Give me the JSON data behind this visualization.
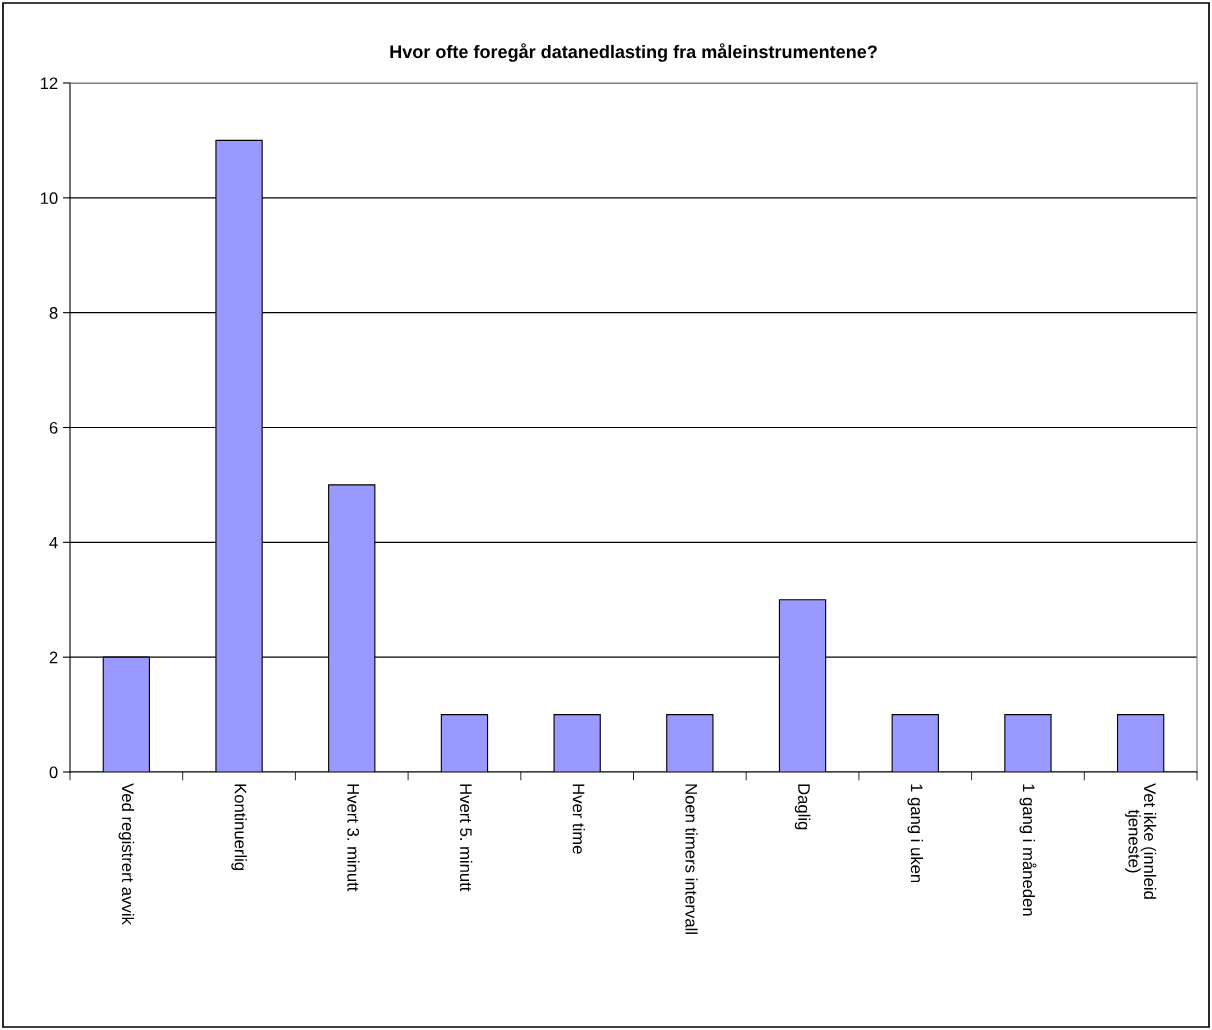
{
  "chart_data": {
    "type": "bar",
    "title": "Hvor ofte foregår datanedlasting fra måleinstrumentene?",
    "categories": [
      "Ved registrert avvik",
      "Kontinuerlig",
      "Hvert 3. minutt",
      "Hvert 5. minutt",
      "Hver time",
      "Noen timers intervall",
      "Daglig",
      "1 gang i uken",
      "1 gang i måneden",
      "Vet ikke (innleid\ntjeneste)"
    ],
    "values": [
      2,
      11,
      5,
      1,
      1,
      1,
      3,
      1,
      1,
      1
    ],
    "color": "#9999ff",
    "ylim": [
      0,
      12
    ],
    "yticks": [
      0,
      2,
      4,
      6,
      8,
      10,
      12
    ],
    "grid": "y",
    "legend": false
  }
}
